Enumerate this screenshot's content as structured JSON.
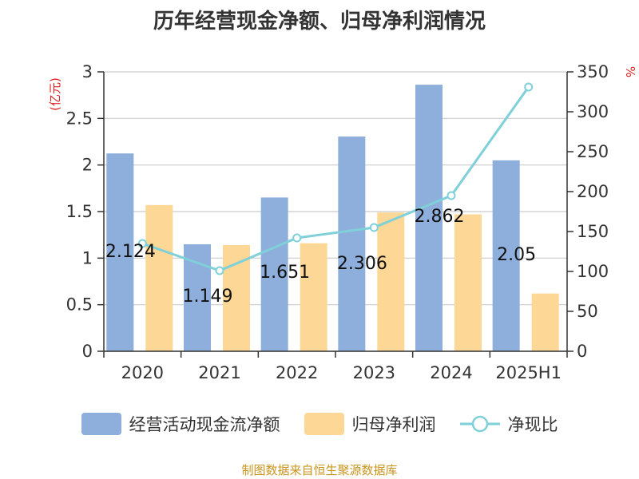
{
  "title": "历年经营现金净额、归母净利润情况",
  "source": "制图数据来自恒生聚源数据库",
  "colors": {
    "bar1": "#8eaedb",
    "bar2": "#fcd795",
    "line": "#7fd0d8",
    "axis_label": "#dd2222",
    "text": "#333333",
    "grid": "#cccccc",
    "source": "#c8951f"
  },
  "legend": [
    {
      "label": "经营活动现金流净额",
      "icon": "rect-blue"
    },
    {
      "label": "归母净利润",
      "icon": "rect-yellow"
    },
    {
      "label": "净现比",
      "icon": "line-circle"
    }
  ],
  "chart_data": {
    "type": "bar",
    "categories": [
      "2020",
      "2021",
      "2022",
      "2023",
      "2024",
      "2025H1"
    ],
    "series": [
      {
        "name": "经营活动现金流净额",
        "type": "bar",
        "axis": "left",
        "values": [
          2.124,
          1.149,
          1.651,
          2.306,
          2.862,
          2.05
        ],
        "labels": [
          "2.124",
          "1.149",
          "1.651",
          "2.306",
          "2.862",
          "2.05"
        ]
      },
      {
        "name": "归母净利润",
        "type": "bar",
        "axis": "left",
        "values": [
          1.57,
          1.14,
          1.16,
          1.49,
          1.47,
          0.62
        ]
      },
      {
        "name": "净现比",
        "type": "line",
        "axis": "right",
        "values": [
          135,
          101,
          142,
          155,
          195,
          331
        ]
      }
    ],
    "ylabel_left": "(亿元)",
    "ylabel_right": "%",
    "ylim_left": [
      0,
      3
    ],
    "ylim_right": [
      0,
      350
    ],
    "yticks_left": [
      "0",
      "0.5",
      "1",
      "1.5",
      "2",
      "2.5",
      "3"
    ],
    "yticks_right": [
      "0",
      "50",
      "100",
      "150",
      "200",
      "250",
      "300",
      "350"
    ],
    "grid": true,
    "legend_position": "bottom"
  }
}
